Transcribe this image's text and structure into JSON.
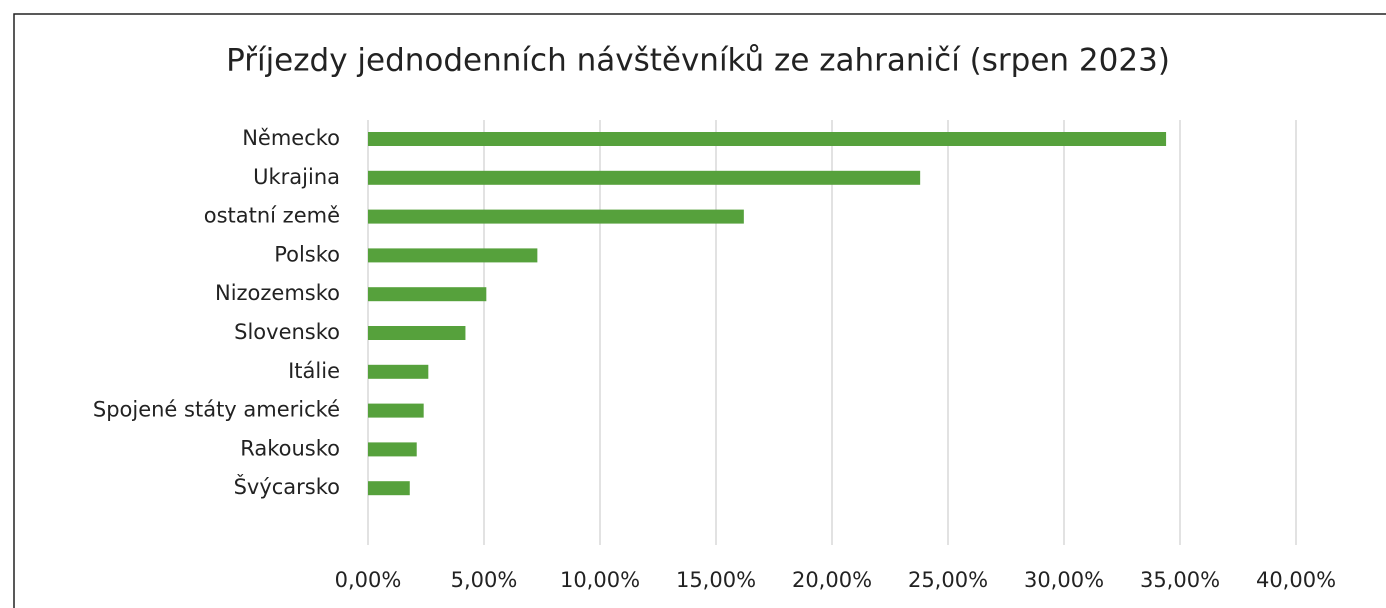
{
  "chart_data": {
    "type": "bar",
    "orientation": "horizontal",
    "title": "Příjezdy jednodenních návštěvníků ze zahraničí (srpen 2023)",
    "categories": [
      "Německo",
      "Ukrajina",
      "ostatní země",
      "Polsko",
      "Nizozemsko",
      "Slovensko",
      "Itálie",
      "Spojené státy americké",
      "Rakousko",
      "Švýcarsko"
    ],
    "values": [
      34.4,
      23.8,
      16.2,
      7.3,
      5.1,
      4.2,
      2.6,
      2.4,
      2.1,
      1.8
    ],
    "color": "#56a13c",
    "xlim": [
      0,
      40
    ],
    "xticks": [
      {
        "value": 0,
        "label": "0,00%"
      },
      {
        "value": 5,
        "label": "5,00%"
      },
      {
        "value": 10,
        "label": "10,00%"
      },
      {
        "value": 15,
        "label": "15,00%"
      },
      {
        "value": 20,
        "label": "20,00%"
      },
      {
        "value": 25,
        "label": "25,00%"
      },
      {
        "value": 30,
        "label": "30,00%"
      },
      {
        "value": 35,
        "label": "35,00%"
      },
      {
        "value": 40,
        "label": "40,00%"
      }
    ],
    "grid": true
  }
}
